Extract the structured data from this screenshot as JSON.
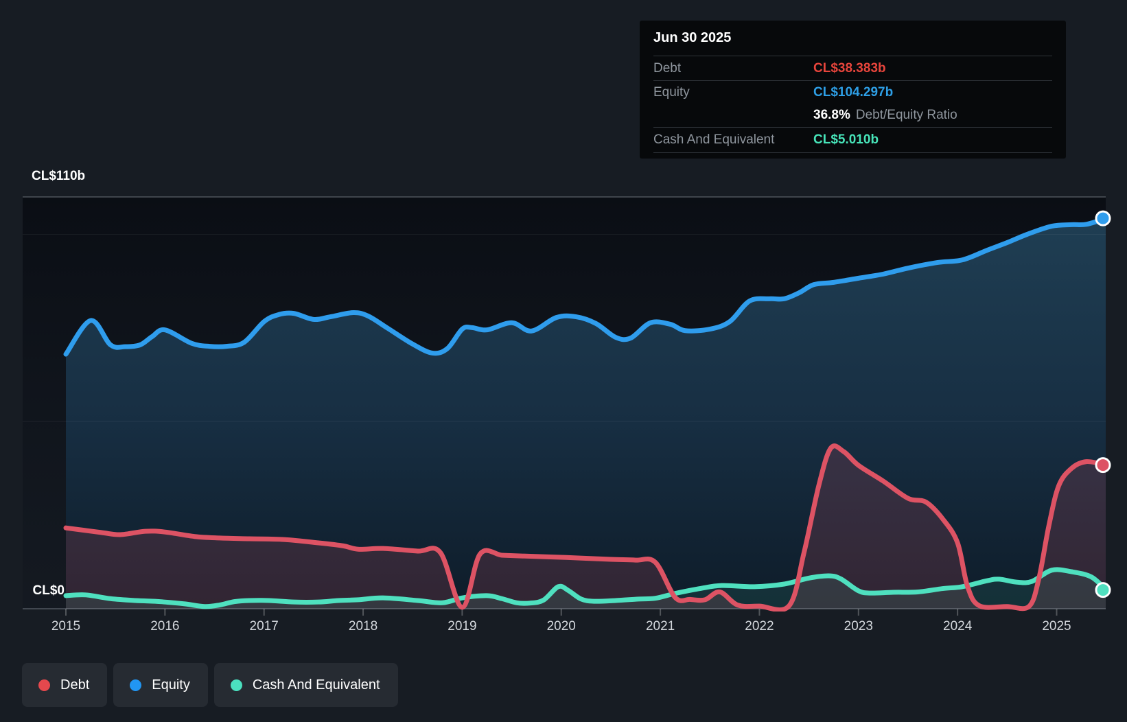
{
  "page": {
    "background": "#171c23"
  },
  "tooltip": {
    "date": "Jun 30 2025",
    "debt_label": "Debt",
    "debt_value": "CL$38.383b",
    "debt_value_color": "#e8453c",
    "equity_label": "Equity",
    "equity_value": "CL$104.297b",
    "equity_value_color": "#2e9fe6",
    "ratio_value": "36.8%",
    "ratio_label": "Debt/Equity Ratio",
    "cash_label": "Cash And Equivalent",
    "cash_value": "CL$5.010b",
    "cash_value_color": "#47e4b9"
  },
  "legend": {
    "items": [
      {
        "label": "Debt",
        "color": "#e5484d",
        "slug": "debt"
      },
      {
        "label": "Equity",
        "color": "#2196f3",
        "slug": "equity"
      },
      {
        "label": "Cash And Equivalent",
        "color": "#4be0bf",
        "slug": "cash-and-equivalent"
      }
    ]
  },
  "chart_data": {
    "type": "area",
    "unit": "CL$ billions",
    "x_range": [
      2015,
      2025.5
    ],
    "y_max": 110,
    "x_axis": {
      "years": [
        "2015",
        "2016",
        "2017",
        "2018",
        "2019",
        "2020",
        "2021",
        "2022",
        "2023",
        "2024",
        "2025"
      ]
    },
    "y_axis": {
      "top_label": "CL$110b",
      "zero_label": "CL$0",
      "gridlines": [
        {
          "value": 110,
          "style": "major"
        },
        {
          "value": 100,
          "style": "minor"
        },
        {
          "value": 50,
          "style": "minor"
        },
        {
          "value": 0,
          "style": "axis"
        }
      ]
    },
    "series": [
      {
        "name": "Debt",
        "color": "#dd5364",
        "fill": "rgba(224,82,99,0.17)",
        "points": [
          [
            2015.0,
            21.6
          ],
          [
            2015.35,
            20.4
          ],
          [
            2015.55,
            19.8
          ],
          [
            2015.8,
            20.7
          ],
          [
            2016.0,
            20.5
          ],
          [
            2016.3,
            19.3
          ],
          [
            2016.55,
            18.9
          ],
          [
            2016.85,
            18.7
          ],
          [
            2017.2,
            18.5
          ],
          [
            2017.55,
            17.6
          ],
          [
            2017.8,
            16.8
          ],
          [
            2017.95,
            15.9
          ],
          [
            2018.2,
            16.1
          ],
          [
            2018.55,
            15.4
          ],
          [
            2018.78,
            15.0
          ],
          [
            2019.0,
            0.4
          ],
          [
            2019.18,
            14.6
          ],
          [
            2019.4,
            14.3
          ],
          [
            2019.6,
            14.1
          ],
          [
            2020.05,
            13.7
          ],
          [
            2020.5,
            13.2
          ],
          [
            2020.75,
            13.0
          ],
          [
            2020.95,
            12.4
          ],
          [
            2021.15,
            3.0
          ],
          [
            2021.3,
            2.5
          ],
          [
            2021.45,
            2.4
          ],
          [
            2021.6,
            4.5
          ],
          [
            2021.78,
            1.0
          ],
          [
            2022.0,
            0.7
          ],
          [
            2022.3,
            0.8
          ],
          [
            2022.45,
            15.0
          ],
          [
            2022.6,
            33.0
          ],
          [
            2022.72,
            42.9
          ],
          [
            2022.85,
            42.0
          ],
          [
            2023.0,
            38.3
          ],
          [
            2023.25,
            34.1
          ],
          [
            2023.5,
            29.5
          ],
          [
            2023.68,
            28.5
          ],
          [
            2023.85,
            24.0
          ],
          [
            2024.0,
            17.6
          ],
          [
            2024.1,
            6.0
          ],
          [
            2024.22,
            0.8
          ],
          [
            2024.5,
            0.6
          ],
          [
            2024.72,
            0.6
          ],
          [
            2024.82,
            8.0
          ],
          [
            2024.92,
            22.0
          ],
          [
            2025.02,
            32.8
          ],
          [
            2025.15,
            37.5
          ],
          [
            2025.3,
            39.3
          ],
          [
            2025.5,
            38.383
          ]
        ]
      },
      {
        "name": "Equity",
        "color": "#2f9ded",
        "fill_top": "#204055",
        "fill_mid": "#172e42",
        "fill_bottom": "#0e1c29",
        "points": [
          [
            2015.0,
            68.0
          ],
          [
            2015.25,
            77.0
          ],
          [
            2015.45,
            70.5
          ],
          [
            2015.6,
            70.0
          ],
          [
            2015.75,
            70.5
          ],
          [
            2015.87,
            72.7
          ],
          [
            2016.0,
            74.5
          ],
          [
            2016.27,
            70.9
          ],
          [
            2016.45,
            70.1
          ],
          [
            2016.62,
            70.1
          ],
          [
            2016.8,
            71.2
          ],
          [
            2017.0,
            76.7
          ],
          [
            2017.15,
            78.6
          ],
          [
            2017.3,
            78.9
          ],
          [
            2017.5,
            77.3
          ],
          [
            2017.67,
            78.0
          ],
          [
            2017.9,
            79.1
          ],
          [
            2018.05,
            78.2
          ],
          [
            2018.25,
            74.9
          ],
          [
            2018.5,
            70.7
          ],
          [
            2018.7,
            68.3
          ],
          [
            2018.85,
            69.5
          ],
          [
            2019.0,
            74.7
          ],
          [
            2019.1,
            75.1
          ],
          [
            2019.25,
            74.5
          ],
          [
            2019.5,
            76.4
          ],
          [
            2019.7,
            74.2
          ],
          [
            2019.95,
            77.8
          ],
          [
            2020.15,
            78.0
          ],
          [
            2020.35,
            76.2
          ],
          [
            2020.55,
            72.5
          ],
          [
            2020.7,
            72.3
          ],
          [
            2020.9,
            76.4
          ],
          [
            2021.1,
            76.0
          ],
          [
            2021.25,
            74.3
          ],
          [
            2021.5,
            74.7
          ],
          [
            2021.7,
            76.7
          ],
          [
            2021.9,
            82.2
          ],
          [
            2022.1,
            82.8
          ],
          [
            2022.25,
            82.8
          ],
          [
            2022.4,
            84.4
          ],
          [
            2022.55,
            86.6
          ],
          [
            2022.75,
            87.2
          ],
          [
            2023.0,
            88.3
          ],
          [
            2023.25,
            89.4
          ],
          [
            2023.5,
            91.0
          ],
          [
            2023.8,
            92.5
          ],
          [
            2024.05,
            93.2
          ],
          [
            2024.3,
            95.8
          ],
          [
            2024.5,
            97.8
          ],
          [
            2024.7,
            100.0
          ],
          [
            2024.95,
            102.2
          ],
          [
            2025.15,
            102.6
          ],
          [
            2025.3,
            102.7
          ],
          [
            2025.5,
            104.297
          ]
        ]
      },
      {
        "name": "Cash And Equivalent",
        "color": "#4fe0bf",
        "fill": "rgba(79,224,191,0.10)",
        "points": [
          [
            2015.0,
            3.5
          ],
          [
            2015.2,
            3.7
          ],
          [
            2015.45,
            2.7
          ],
          [
            2015.7,
            2.2
          ],
          [
            2015.9,
            2.0
          ],
          [
            2016.0,
            1.8
          ],
          [
            2016.2,
            1.3
          ],
          [
            2016.4,
            0.6
          ],
          [
            2016.55,
            1.0
          ],
          [
            2016.7,
            1.9
          ],
          [
            2016.85,
            2.2
          ],
          [
            2017.05,
            2.2
          ],
          [
            2017.3,
            1.8
          ],
          [
            2017.55,
            1.8
          ],
          [
            2017.75,
            2.2
          ],
          [
            2017.95,
            2.4
          ],
          [
            2018.2,
            2.9
          ],
          [
            2018.55,
            2.2
          ],
          [
            2018.8,
            1.6
          ],
          [
            2019.0,
            2.9
          ],
          [
            2019.25,
            3.5
          ],
          [
            2019.4,
            2.7
          ],
          [
            2019.55,
            1.6
          ],
          [
            2019.68,
            1.5
          ],
          [
            2019.82,
            2.3
          ],
          [
            2019.97,
            5.9
          ],
          [
            2020.07,
            4.9
          ],
          [
            2020.2,
            2.6
          ],
          [
            2020.33,
            2.0
          ],
          [
            2020.55,
            2.2
          ],
          [
            2020.78,
            2.6
          ],
          [
            2020.95,
            2.8
          ],
          [
            2021.15,
            4.1
          ],
          [
            2021.4,
            5.4
          ],
          [
            2021.62,
            6.2
          ],
          [
            2021.95,
            5.9
          ],
          [
            2022.25,
            6.6
          ],
          [
            2022.5,
            8.2
          ],
          [
            2022.7,
            8.8
          ],
          [
            2022.82,
            8.0
          ],
          [
            2023.0,
            4.8
          ],
          [
            2023.12,
            4.2
          ],
          [
            2023.35,
            4.4
          ],
          [
            2023.6,
            4.5
          ],
          [
            2023.85,
            5.4
          ],
          [
            2024.05,
            5.9
          ],
          [
            2024.3,
            7.5
          ],
          [
            2024.42,
            7.9
          ],
          [
            2024.6,
            7.1
          ],
          [
            2024.75,
            7.3
          ],
          [
            2024.95,
            10.3
          ],
          [
            2025.15,
            9.9
          ],
          [
            2025.35,
            8.5
          ],
          [
            2025.5,
            5.01
          ]
        ]
      }
    ]
  }
}
